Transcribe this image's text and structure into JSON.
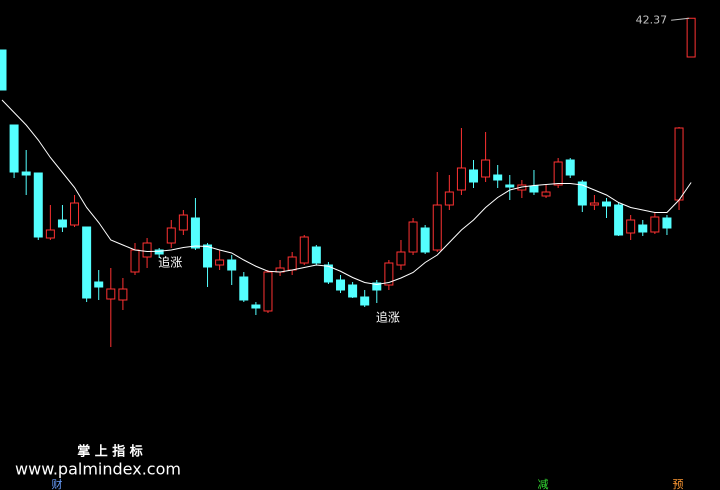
{
  "chart_data": {
    "type": "candlestick",
    "categories": [
      null,
      null,
      null,
      null,
      null,
      null,
      null,
      null,
      null,
      null,
      null,
      null,
      null,
      null,
      null,
      null,
      null,
      null,
      null,
      null,
      null,
      null,
      null,
      null,
      null,
      null,
      null,
      null,
      null,
      null,
      null,
      null,
      null,
      null,
      null,
      null,
      null,
      null,
      null,
      null,
      null,
      null,
      null,
      null,
      null,
      null,
      null,
      null,
      null,
      null,
      null,
      null,
      null,
      null,
      null,
      null,
      null,
      null
    ],
    "open": [
      41.1,
      38.1,
      36.22,
      36.18,
      33.58,
      34.3,
      34.1,
      34.02,
      31.82,
      31.14,
      31.1,
      32.22,
      32.82,
      33.1,
      33.38,
      33.9,
      34.38,
      33.3,
      32.5,
      32.7,
      32.02,
      30.9,
      30.66,
      32.22,
      32.3,
      32.58,
      33.22,
      32.5,
      31.9,
      31.7,
      31.22,
      31.78,
      31.7,
      32.5,
      33.02,
      33.98,
      33.1,
      34.9,
      35.5,
      36.3,
      36.02,
      36.1,
      35.7,
      35.5,
      35.66,
      35.26,
      35.7,
      36.7,
      35.82,
      34.9,
      35.02,
      34.9,
      33.78,
      34.1,
      33.82,
      34.38,
      35.1,
      40.82
    ],
    "high": [
      41.1,
      38.1,
      37.1,
      36.18,
      34.9,
      34.9,
      35.3,
      34.02,
      32.3,
      32.38,
      31.98,
      33.38,
      33.58,
      33.18,
      34.3,
      34.7,
      35.18,
      33.38,
      33.1,
      32.9,
      32.22,
      31.02,
      32.3,
      32.7,
      33.02,
      33.7,
      33.3,
      32.62,
      32.1,
      31.82,
      31.5,
      31.9,
      32.7,
      33.5,
      34.38,
      34.1,
      36.22,
      36.1,
      37.98,
      36.7,
      37.82,
      36.5,
      36.1,
      35.9,
      36.3,
      35.7,
      36.78,
      36.78,
      35.9,
      35.3,
      35.18,
      34.98,
      34.5,
      34.3,
      34.58,
      34.5,
      38.02,
      42.37
    ],
    "low": [
      39.5,
      35.98,
      35.3,
      33.5,
      33.5,
      33.82,
      34.02,
      31.02,
      31.1,
      29.22,
      30.7,
      32.1,
      32.38,
      32.78,
      33.18,
      33.7,
      33.1,
      31.62,
      32.3,
      31.7,
      31.02,
      30.5,
      30.58,
      32.06,
      32.1,
      32.5,
      32.5,
      31.74,
      31.38,
      31.18,
      30.82,
      30.98,
      31.5,
      32.3,
      32.9,
      32.94,
      33.02,
      34.7,
      35.3,
      35.58,
      35.82,
      35.58,
      35.1,
      35.18,
      35.3,
      35.18,
      35.58,
      35.98,
      34.62,
      34.7,
      34.38,
      33.66,
      33.5,
      33.66,
      33.74,
      33.7,
      34.7,
      40.82
    ],
    "close": [
      39.5,
      36.22,
      36.1,
      33.62,
      33.9,
      34.02,
      34.98,
      31.18,
      31.62,
      31.54,
      31.54,
      33.1,
      33.38,
      32.94,
      33.98,
      34.5,
      33.18,
      32.42,
      32.7,
      32.3,
      31.1,
      30.78,
      32.22,
      32.38,
      32.82,
      33.62,
      32.58,
      31.82,
      31.5,
      31.22,
      30.9,
      31.5,
      32.58,
      33.02,
      34.22,
      33.02,
      34.9,
      35.42,
      36.38,
      35.82,
      36.7,
      35.9,
      35.62,
      35.7,
      35.42,
      35.42,
      36.62,
      36.1,
      34.9,
      34.98,
      34.86,
      33.7,
      34.3,
      33.82,
      34.42,
      33.98,
      37.98,
      42.37
    ],
    "up_color": "#ff3232",
    "down_color": "#54ffff",
    "ma": {
      "color": "#ffffff",
      "values": [
        39.1,
        38.6,
        38.1,
        37.5,
        36.8,
        36.2,
        35.6,
        34.8,
        34.2,
        33.5,
        33.3,
        33.1,
        33.04,
        33.05,
        33.1,
        33.2,
        33.26,
        33.24,
        33.1,
        32.98,
        32.7,
        32.45,
        32.25,
        32.22,
        32.3,
        32.4,
        32.5,
        32.45,
        32.25,
        32.0,
        31.8,
        31.72,
        31.8,
        31.98,
        32.2,
        32.6,
        32.9,
        33.4,
        33.9,
        34.3,
        34.8,
        35.2,
        35.5,
        35.62,
        35.68,
        35.72,
        35.76,
        35.76,
        35.7,
        35.5,
        35.3,
        35.0,
        34.8,
        34.7,
        34.6,
        34.6,
        35.1,
        35.8
      ]
    },
    "ylim": [
      23.5,
      43.1
    ],
    "annotations": [
      "追涨",
      "追涨"
    ]
  },
  "footer": {
    "brand": "掌 上 指 标",
    "url": "www.palmindex.com",
    "tabs": [
      "财",
      "减",
      "预"
    ]
  }
}
